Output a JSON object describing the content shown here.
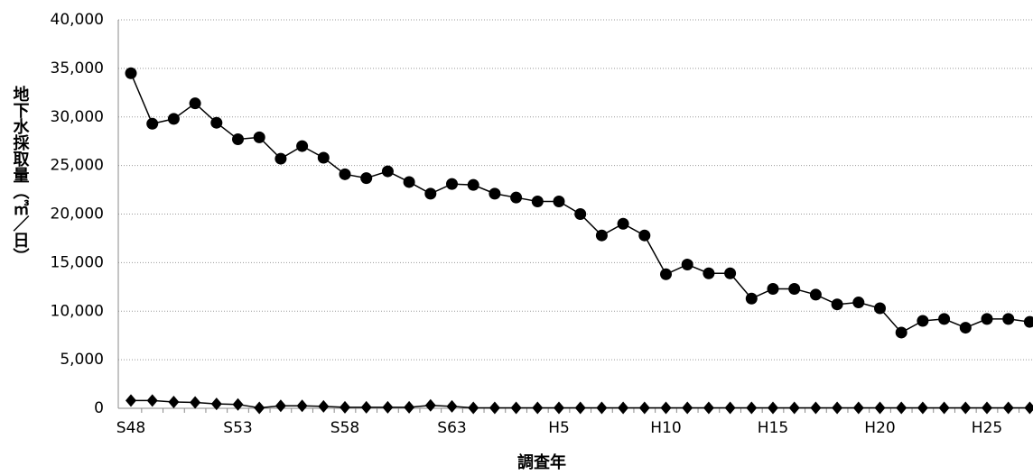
{
  "chart_data": {
    "type": "line",
    "x_label": "調査年",
    "y_label": "地下水採取量（㎥／日）",
    "categories": [
      "S48",
      null,
      null,
      null,
      null,
      "S53",
      null,
      null,
      null,
      null,
      "S58",
      null,
      null,
      null,
      null,
      "S63",
      null,
      null,
      null,
      null,
      "H5",
      null,
      null,
      null,
      null,
      "H10",
      null,
      null,
      null,
      null,
      "H15",
      null,
      null,
      null,
      null,
      "H20",
      null,
      null,
      null,
      null,
      "H25",
      null,
      null
    ],
    "series": [
      {
        "color": "#000000",
        "marker": "circle",
        "values": [
          34500,
          29300,
          29800,
          31400,
          29400,
          27700,
          27900,
          25700,
          27000,
          25800,
          24100,
          23700,
          24400,
          23300,
          22100,
          23100,
          23000,
          22100,
          21700,
          21300,
          21300,
          20000,
          17800,
          19000,
          17800,
          13800,
          14800,
          13900,
          13900,
          11300,
          12300,
          12300,
          11700,
          10700,
          10900,
          10300,
          7800,
          9000,
          9200,
          8300,
          9200,
          9200,
          8900
        ]
      },
      {
        "color": "#000000",
        "marker": "diamond",
        "values": [
          800,
          800,
          650,
          600,
          450,
          400,
          50,
          250,
          250,
          200,
          100,
          100,
          100,
          100,
          300,
          200,
          50,
          50,
          50,
          50,
          50,
          50,
          50,
          50,
          50,
          50,
          50,
          50,
          50,
          50,
          50,
          50,
          50,
          50,
          50,
          50,
          50,
          50,
          50,
          50,
          50,
          50,
          50
        ]
      }
    ],
    "ylim": [
      0,
      40000
    ],
    "yticks": [
      0,
      {
        "value": 5000,
        "label": "5,000"
      },
      {
        "value": 10000,
        "label": "10,000"
      },
      {
        "value": 15000,
        "label": "15,000"
      },
      {
        "value": 20000,
        "label": "20,000"
      },
      {
        "value": 25000,
        "label": "25,000"
      },
      {
        "value": 30000,
        "label": "30,000"
      },
      {
        "value": 35000,
        "label": "35,000"
      },
      {
        "value": 40000,
        "label": "40,000"
      }
    ],
    "grid": true
  }
}
